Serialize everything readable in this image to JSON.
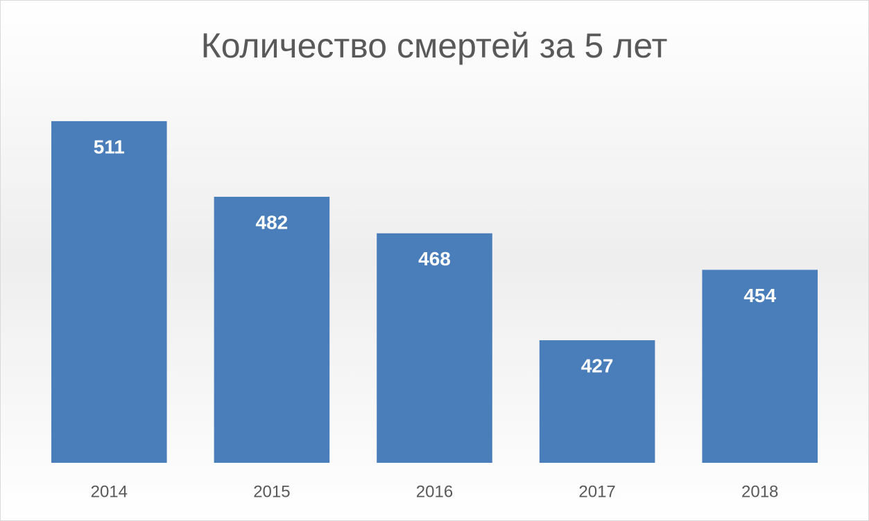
{
  "chart_data": {
    "type": "bar",
    "title": "Количество смертей за 5 лет",
    "categories": [
      "2014",
      "2015",
      "2016",
      "2017",
      "2018"
    ],
    "values": [
      511,
      482,
      468,
      427,
      454
    ],
    "color": "#4a7ebb",
    "ylim": [
      380,
      520
    ]
  }
}
